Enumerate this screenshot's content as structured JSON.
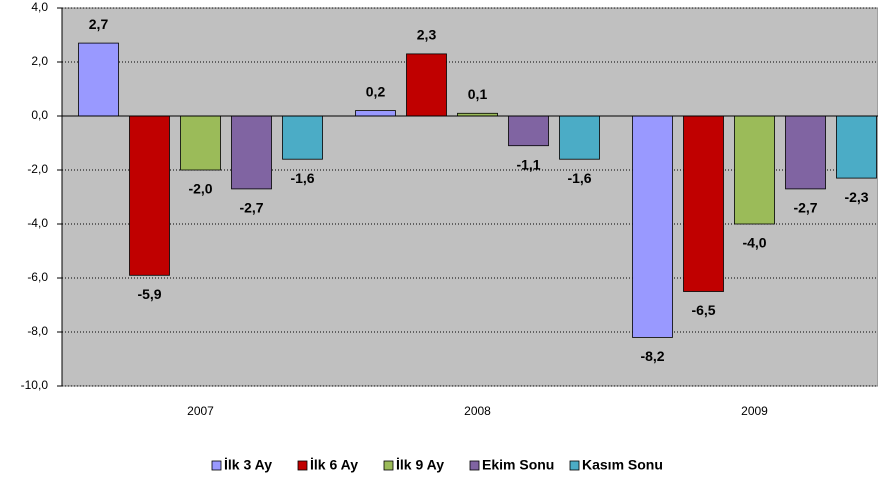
{
  "chart_data": {
    "type": "bar",
    "categories": [
      "2007",
      "2008",
      "2009"
    ],
    "series": [
      {
        "name": "İlk 3 Ay",
        "color": "#9999ff",
        "values": [
          2.7,
          0.2,
          -8.2
        ],
        "value_labels": [
          "2,7",
          "0,2",
          "-8,2"
        ]
      },
      {
        "name": "İlk 6 Ay",
        "color": "#c00000",
        "values": [
          -5.9,
          2.3,
          -6.5
        ],
        "value_labels": [
          "-5,9",
          "2,3",
          "-6,5"
        ]
      },
      {
        "name": "İlk 9 Ay",
        "color": "#9bbb59",
        "values": [
          -2.0,
          0.1,
          -4.0
        ],
        "value_labels": [
          "-2,0",
          "0,1",
          "-4,0"
        ]
      },
      {
        "name": "Ekim Sonu",
        "color": "#8064a2",
        "values": [
          -2.7,
          -1.1,
          -2.7
        ],
        "value_labels": [
          "-2,7",
          "-1,1",
          "-2,7"
        ]
      },
      {
        "name": "Kasım Sonu",
        "color": "#4bacc6",
        "values": [
          -1.6,
          -1.6,
          -2.3
        ],
        "value_labels": [
          "-1,6",
          "-1,6",
          "-2,3"
        ]
      }
    ],
    "ylim": [
      -10,
      4
    ],
    "yticks": [
      {
        "value": -10,
        "label": "-10,0"
      },
      {
        "value": -8,
        "label": "-8,0"
      },
      {
        "value": -6,
        "label": "-6,0"
      },
      {
        "value": -4,
        "label": "-4,0"
      },
      {
        "value": -2,
        "label": "-2,0"
      },
      {
        "value": 0,
        "label": "0,0"
      },
      {
        "value": 2,
        "label": "2,0"
      },
      {
        "value": 4,
        "label": "4,0"
      }
    ],
    "grid": true,
    "legend": "bottom"
  }
}
